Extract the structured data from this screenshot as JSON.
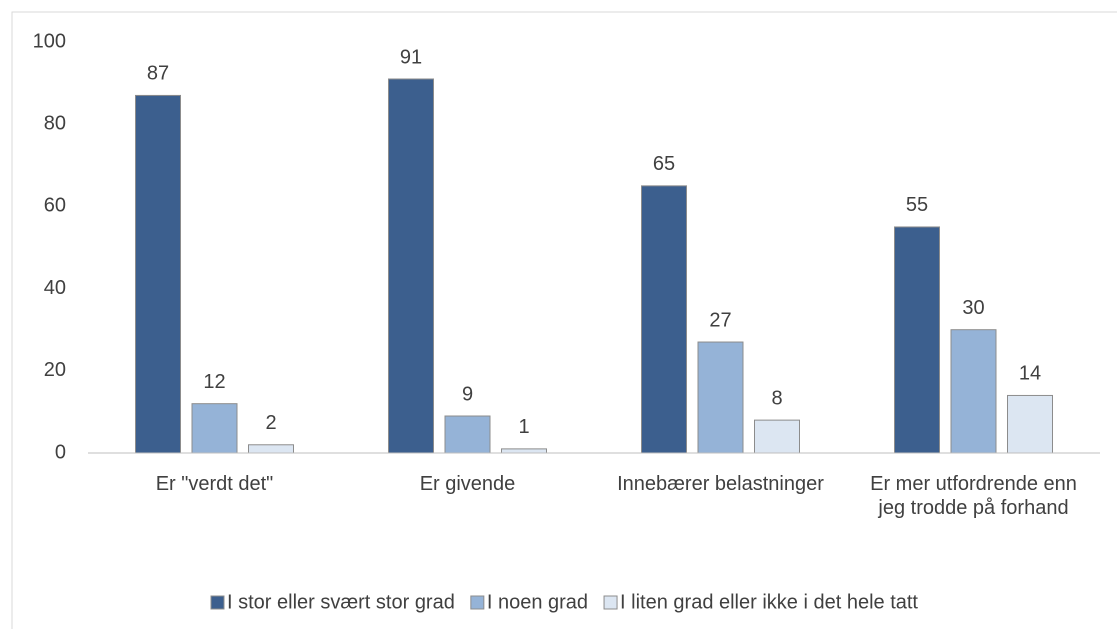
{
  "chart_data": {
    "type": "bar",
    "categories": [
      "Er \"verdt det\"",
      "Er givende",
      "Innebærer belastninger",
      "Er mer utfordrende enn jeg trodde på forhand"
    ],
    "series": [
      {
        "name": "I stor eller svært stor grad",
        "color": "#3c5f8e",
        "values": [
          87,
          91,
          65,
          55
        ]
      },
      {
        "name": "I noen grad",
        "color": "#95b3d7",
        "values": [
          12,
          9,
          27,
          30
        ]
      },
      {
        "name": "I liten grad eller ikke i det hele tatt",
        "color": "#dce6f2",
        "values": [
          2,
          1,
          8,
          14
        ]
      }
    ],
    "ylim": [
      0,
      100
    ],
    "yticks": [
      0,
      20,
      40,
      60,
      80,
      100
    ],
    "grid": false,
    "legend": "bottom"
  }
}
